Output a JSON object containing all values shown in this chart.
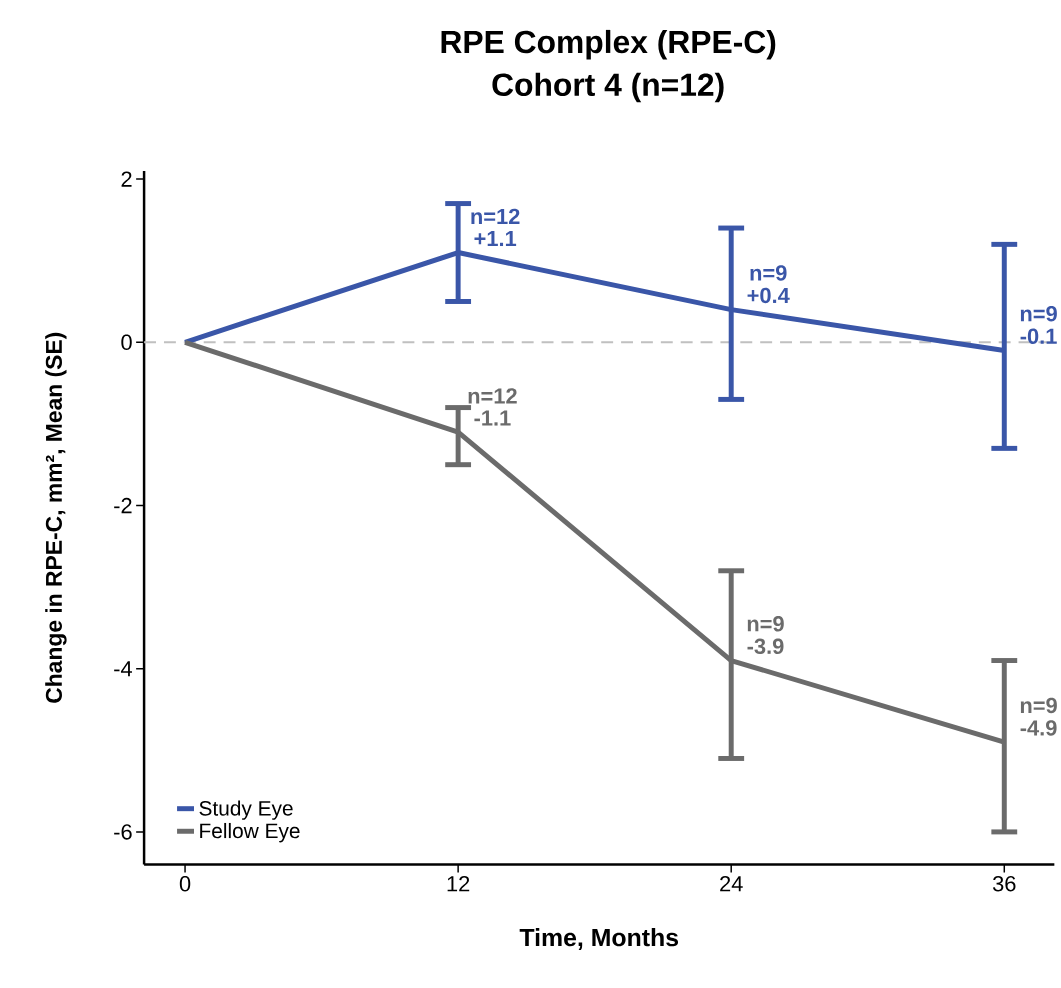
{
  "chart_data": {
    "type": "line",
    "title": "RPE Complex (RPE-C)",
    "subtitle": "Cohort 4 (n=12)",
    "xlabel": "Time, Months",
    "ylabel": "Change in RPE-C, mm², Mean (SE)",
    "x": [
      0,
      12,
      24,
      36
    ],
    "series": [
      {
        "name": "Study Eye",
        "color": "#3a56a8",
        "values": [
          0,
          1.1,
          0.4,
          -0.1
        ],
        "errors": [
          null,
          [
            0.5,
            1.7
          ],
          [
            -0.7,
            1.4
          ],
          [
            -1.3,
            1.2
          ]
        ],
        "value_labels": [
          null,
          "+1.1",
          "+0.4",
          "-0.1"
        ]
      },
      {
        "name": "Fellow Eye",
        "color": "#6b6b6b",
        "values": [
          0,
          -1.1,
          -3.9,
          -4.9
        ],
        "errors": [
          null,
          [
            -1.5,
            -0.8
          ],
          [
            -5.1,
            -2.8
          ],
          [
            -6.0,
            -3.9
          ]
        ],
        "value_labels": [
          null,
          "-1.1",
          "-3.9",
          "-4.9"
        ]
      }
    ],
    "annotations": [
      "n=12",
      "n=9",
      "n=9",
      "n=12",
      "n=9",
      "n=9"
    ],
    "xlim": [
      -1.8,
      38.2
    ],
    "ylim": [
      -6.4,
      2.1
    ],
    "xticks": [
      0,
      12,
      24,
      36
    ],
    "yticks": [
      -6,
      -4,
      -2,
      0,
      2
    ],
    "ref_lines": [
      {
        "axis": "y",
        "value": 0,
        "color": "#c0c0c0",
        "line_style": "dashed"
      }
    ],
    "legend": "bottom left",
    "line_style": "solid"
  }
}
